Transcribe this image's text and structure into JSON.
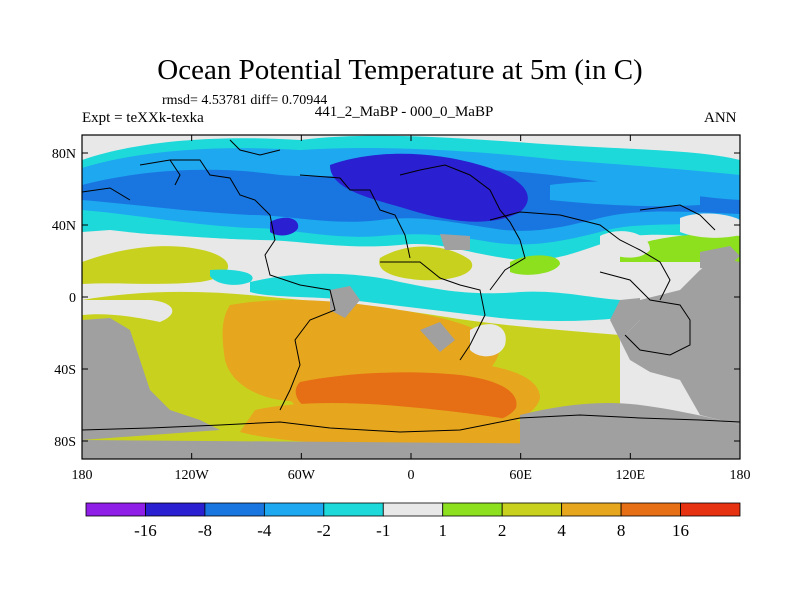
{
  "title": "Ocean Potential Temperature at 5m (in C)",
  "stats": "rmsd= 4.53781 diff= 0.70944",
  "experiment": "Expt = teXXk-texka",
  "subtitle": "441_2_MaBP - 000_0_MaBP",
  "season": "ANN",
  "axes": {
    "x_ticks": [
      "180",
      "120W",
      "60W",
      "0",
      "60E",
      "120E",
      "180"
    ],
    "y_ticks": [
      "80N",
      "40N",
      "0",
      "40S",
      "80S"
    ]
  },
  "colorbar": {
    "colors": [
      "#8f1ee6",
      "#2a1fd1",
      "#1976e0",
      "#1ea8f0",
      "#1ed9d9",
      "#e8e8e8",
      "#8ce01e",
      "#c8d21e",
      "#e6a61e",
      "#e66e14",
      "#e63210"
    ],
    "labels": [
      "-16",
      "-8",
      "-4",
      "-2",
      "-1",
      "1",
      "2",
      "4",
      "8",
      "16"
    ]
  },
  "map_colors": {
    "land_mask": "#a0a0a0",
    "coastline": "#000000"
  }
}
